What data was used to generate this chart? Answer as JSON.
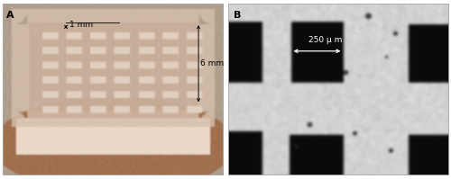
{
  "fig_width": 5.0,
  "fig_height": 1.99,
  "dpi": 100,
  "background_color": "#ffffff",
  "panel_A_label": "A",
  "panel_B_label": "B",
  "annotation_1mm": "1 mm",
  "annotation_6mm": "6 mm",
  "annotation_250um": "250 μ m",
  "label_fontsize": 8,
  "annotation_fontsize": 6.5,
  "border_lw": 1.2
}
